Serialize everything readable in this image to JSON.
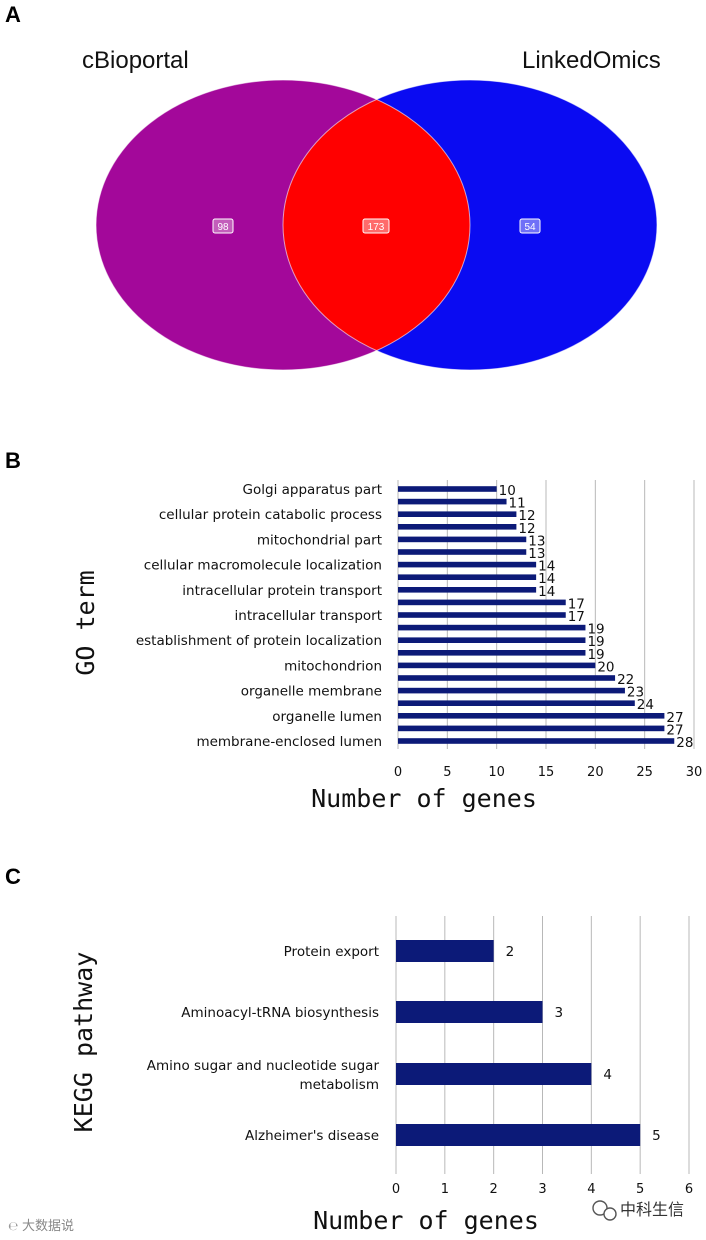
{
  "panels": {
    "a": "A",
    "b": "B",
    "c": "C"
  },
  "venn": {
    "left_title": "cBioportal",
    "right_title": "LinkedOmics",
    "left_only": "98",
    "overlap": "173",
    "right_only": "54",
    "colors": {
      "left": "#a3089a",
      "right": "#0a0bf2",
      "overlap": "#ff0000"
    }
  },
  "chart_data": [
    {
      "type": "bar",
      "orientation": "horizontal",
      "panel": "B",
      "xlabel": "Number of genes",
      "ylabel": "GO term",
      "xlim": [
        0,
        30
      ],
      "xticks": [
        "0",
        "5",
        "10",
        "15",
        "20",
        "25",
        "30"
      ],
      "bar_color": "#0c1a78",
      "categories": [
        {
          "label": "Golgi apparatus part",
          "value": 10
        },
        {
          "label": "",
          "value": 11
        },
        {
          "label": "cellular protein catabolic process",
          "value": 12
        },
        {
          "label": "",
          "value": 12
        },
        {
          "label": "mitochondrial part",
          "value": 13
        },
        {
          "label": "",
          "value": 13
        },
        {
          "label": "cellular macromolecule localization",
          "value": 14
        },
        {
          "label": "",
          "value": 14
        },
        {
          "label": "intracellular protein transport",
          "value": 14
        },
        {
          "label": "",
          "value": 17
        },
        {
          "label": "intracellular transport",
          "value": 17
        },
        {
          "label": "",
          "value": 19
        },
        {
          "label": "establishment of protein localization",
          "value": 19
        },
        {
          "label": "",
          "value": 19
        },
        {
          "label": "mitochondrion",
          "value": 20
        },
        {
          "label": "",
          "value": 22
        },
        {
          "label": "organelle membrane",
          "value": 23
        },
        {
          "label": "",
          "value": 24
        },
        {
          "label": "organelle lumen",
          "value": 27
        },
        {
          "label": "",
          "value": 27
        },
        {
          "label": "membrane-enclosed lumen",
          "value": 28
        }
      ]
    },
    {
      "type": "bar",
      "orientation": "horizontal",
      "panel": "C",
      "xlabel": "Number of genes",
      "ylabel": "KEGG pathway",
      "xlim": [
        0,
        6
      ],
      "xticks": [
        "0",
        "1",
        "2",
        "3",
        "4",
        "5",
        "6"
      ],
      "bar_color": "#0c1a78",
      "categories": [
        {
          "label": [
            "Protein export"
          ],
          "value": 2
        },
        {
          "label": [
            "Aminoacyl-tRNA biosynthesis"
          ],
          "value": 3
        },
        {
          "label": [
            "Amino sugar and nucleotide sugar",
            "metabolism"
          ],
          "value": 4
        },
        {
          "label": [
            "Alzheimer's disease"
          ],
          "value": 5
        }
      ]
    }
  ],
  "watermarks": {
    "left": "大数据说",
    "right": "中科生信"
  }
}
